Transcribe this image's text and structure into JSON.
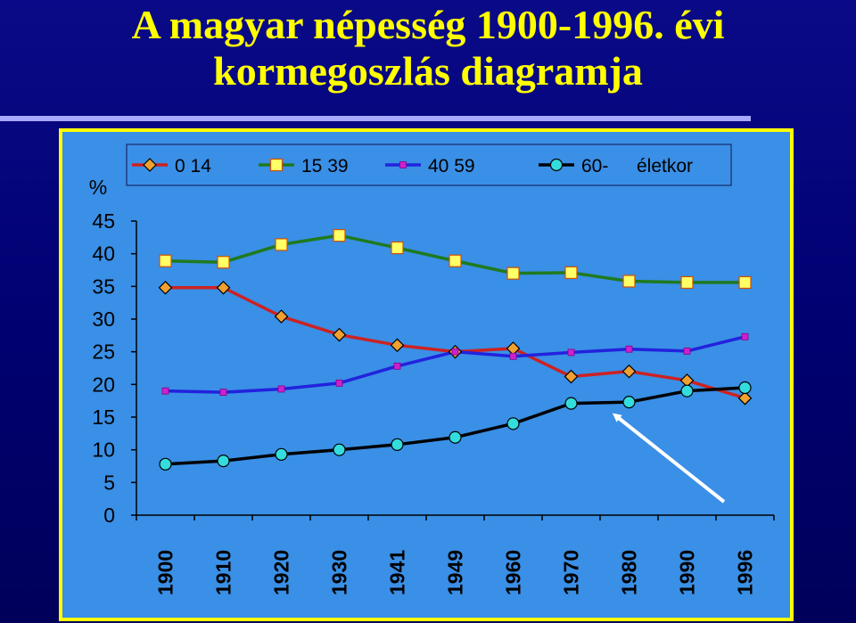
{
  "slide": {
    "title_line1": "A magyar népesség 1900-1996. évi",
    "title_line2": "kormegoszlás diagramja"
  },
  "colors": {
    "background": "#000070",
    "title": "#ffff00",
    "plot_area": "#3a8fe6",
    "frame": "#ffff00",
    "arrow": "#ffffff"
  },
  "chart_data": {
    "type": "line",
    "ylabel": "%",
    "ylim": [
      0,
      45
    ],
    "yticks": [
      "0",
      "5",
      "10",
      "15",
      "20",
      "25",
      "30",
      "35",
      "40",
      "45"
    ],
    "categories": [
      "1900",
      "1910",
      "1920",
      "1930",
      "1941",
      "1949",
      "1960",
      "1970",
      "1980",
      "1990",
      "1996"
    ],
    "legend_position": "top",
    "series": [
      {
        "name": "0 14",
        "color": "#cc2222",
        "marker": "diamond",
        "marker_color": "#f0a030",
        "values": [
          34.8,
          34.8,
          30.4,
          27.6,
          26.0,
          25.0,
          25.5,
          21.2,
          22.0,
          20.6,
          17.9
        ]
      },
      {
        "name": "15 39",
        "color": "#1f7a1f",
        "marker": "square",
        "marker_color": "#ffff66",
        "values": [
          38.9,
          38.7,
          41.4,
          42.8,
          40.9,
          38.9,
          37.0,
          37.1,
          35.8,
          35.6,
          35.6
        ]
      },
      {
        "name": "40 59",
        "color": "#2222dd",
        "marker": "small-square",
        "marker_color": "#cc22cc",
        "values": [
          19.0,
          18.8,
          19.3,
          20.2,
          22.8,
          25.0,
          24.3,
          24.9,
          25.4,
          25.1,
          27.3
        ]
      },
      {
        "name": "60-",
        "color": "#000000",
        "marker": "circle",
        "marker_color": "#33dddd",
        "values": [
          7.8,
          8.3,
          9.3,
          10.0,
          10.8,
          11.9,
          14.0,
          17.1,
          17.3,
          19.0,
          19.5
        ]
      }
    ],
    "legend_suffix": "életkor",
    "annotation": "arrow"
  }
}
